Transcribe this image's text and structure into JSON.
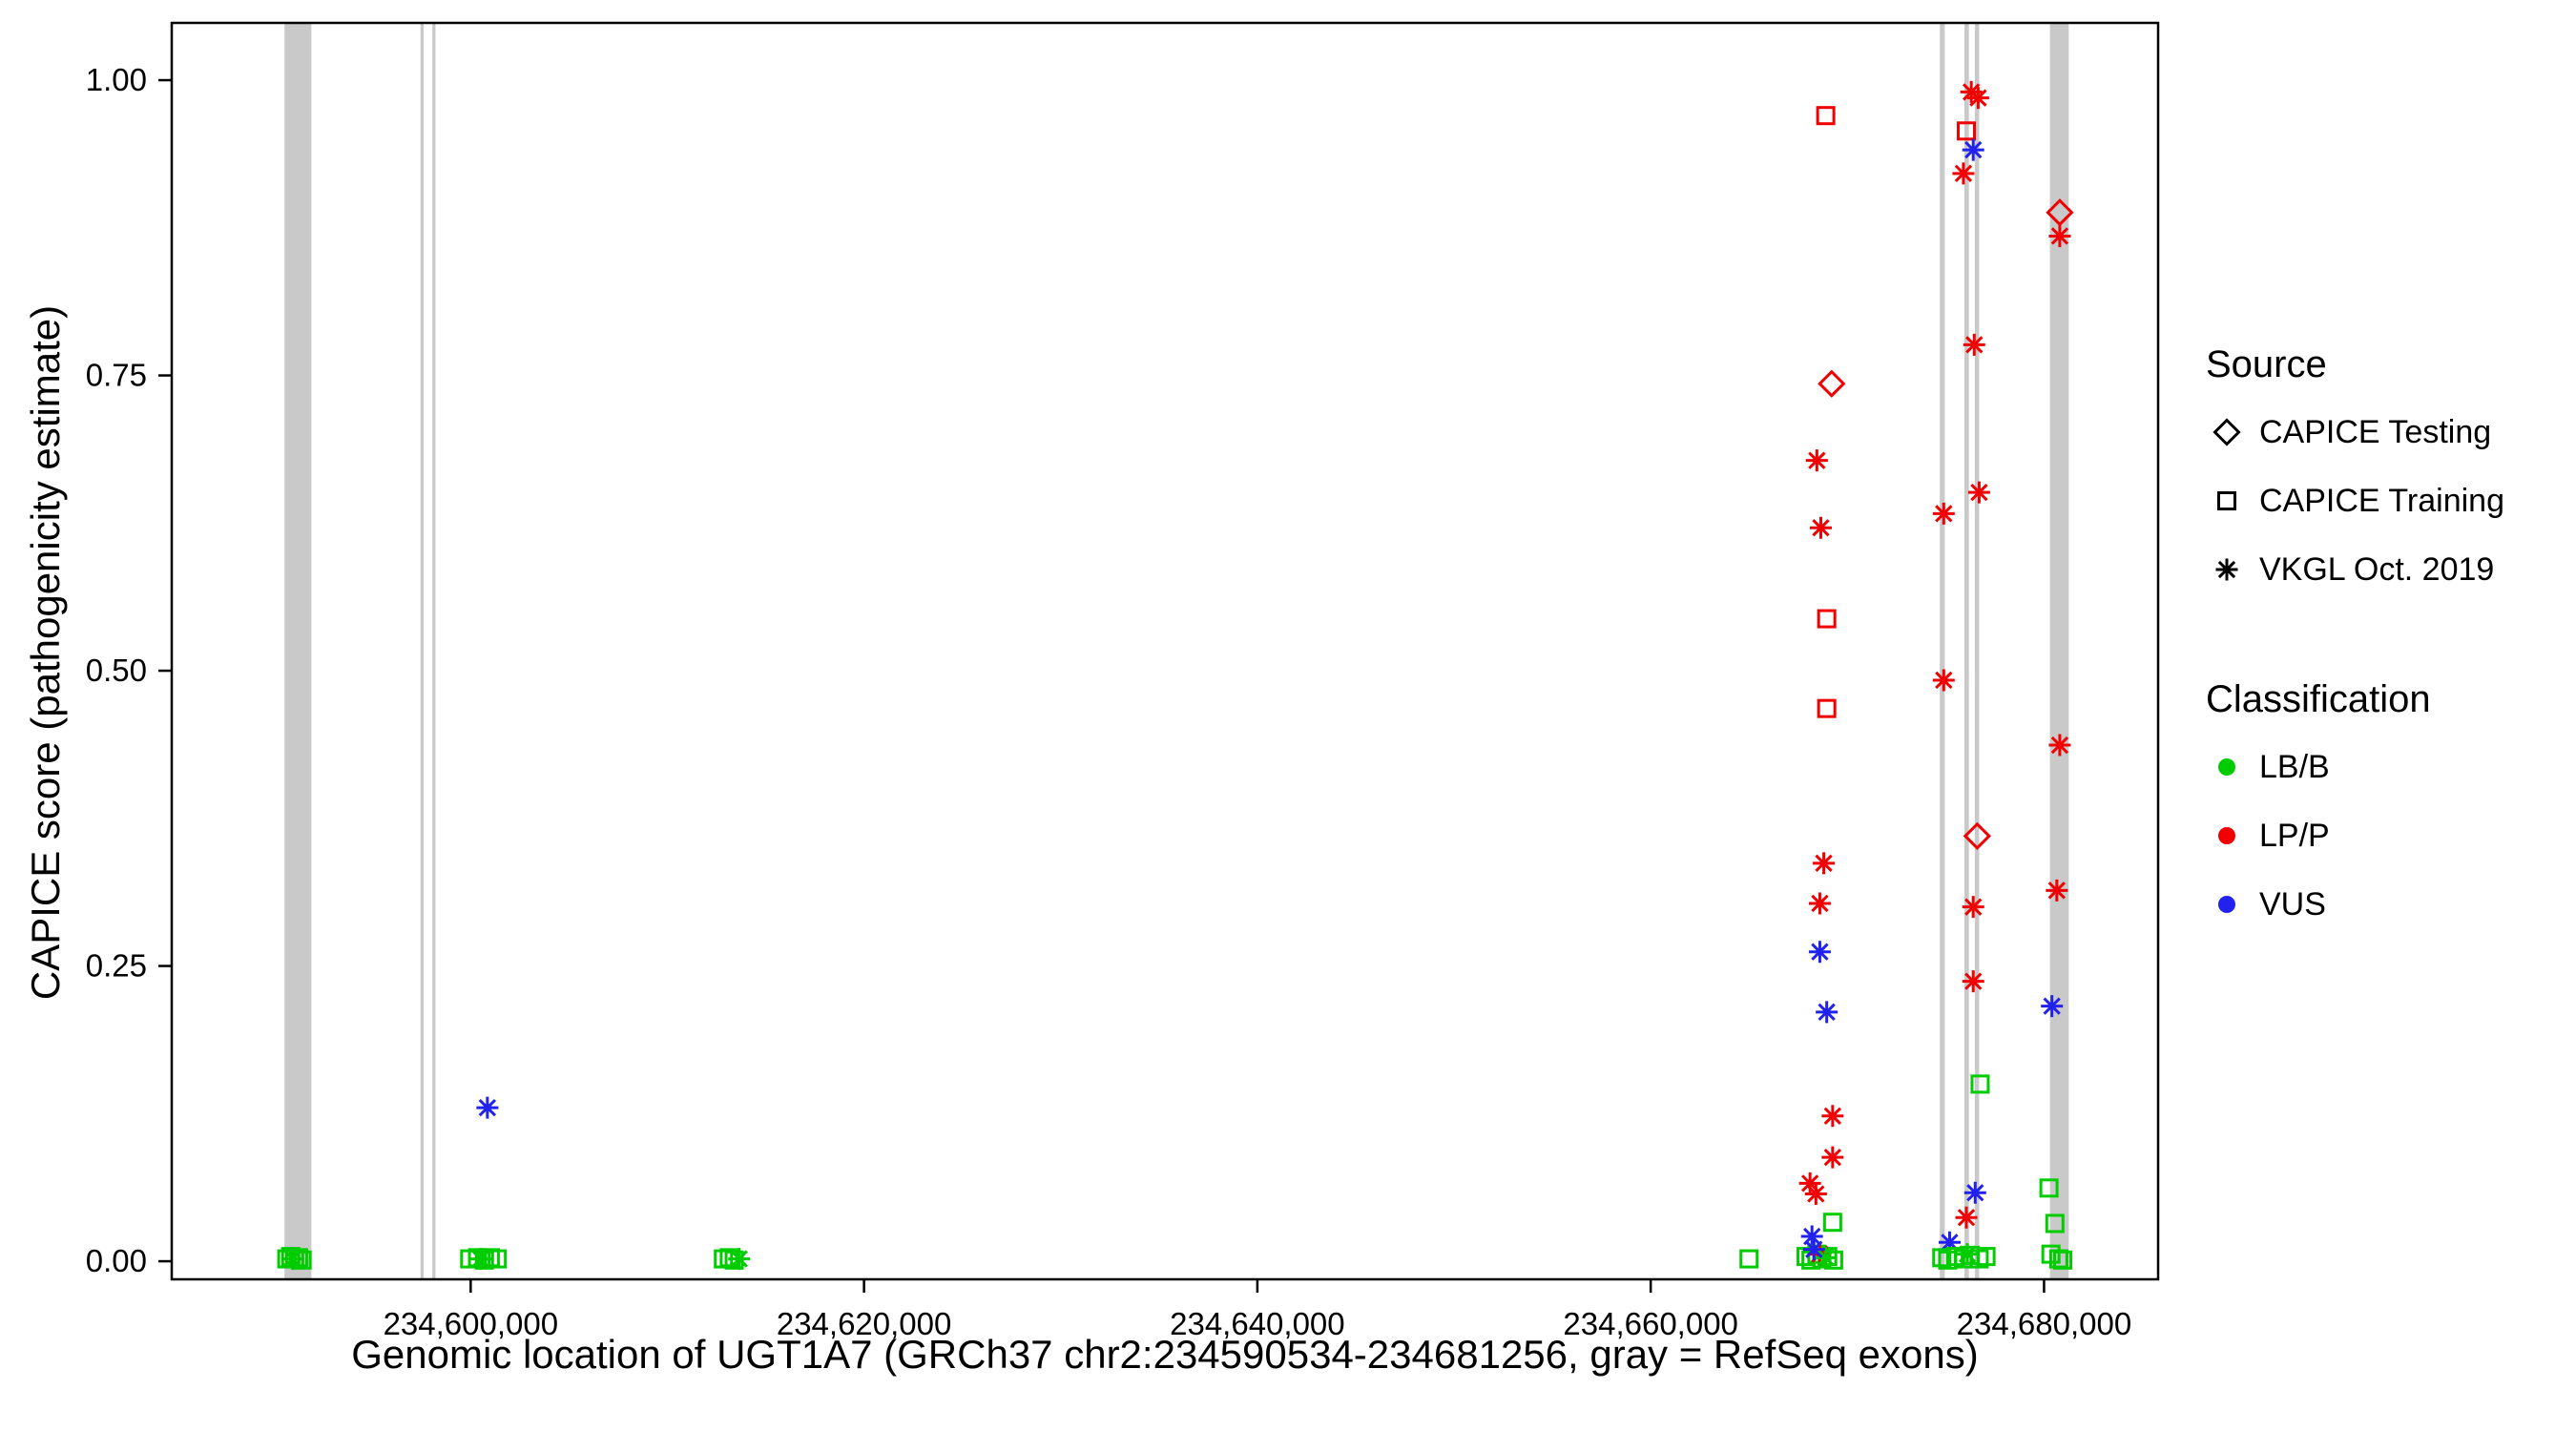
{
  "chart_data": {
    "type": "scatter",
    "title": "",
    "xlabel": "Genomic location of UGT1A7 (GRCh37 chr2:234590534-234681256, gray = RefSeq exons)",
    "ylabel": "CAPICE score (pathogenicity estimate)",
    "xlim": [
      234584800,
      234685800
    ],
    "ylim": [
      -0.0153,
      1.0485
    ],
    "grid": false,
    "legend_position": "right",
    "exon_color": "#c9c9c9",
    "x_ticks": [
      {
        "value": 234600000,
        "label": "234,600,000"
      },
      {
        "value": 234620000,
        "label": "234,620,000"
      },
      {
        "value": 234640000,
        "label": "234,640,000"
      },
      {
        "value": 234660000,
        "label": "234,660,000"
      },
      {
        "value": 234680000,
        "label": "234,680,000"
      }
    ],
    "y_ticks": [
      {
        "value": 0.0,
        "label": "0.00"
      },
      {
        "value": 0.25,
        "label": "0.25"
      },
      {
        "value": 0.5,
        "label": "0.50"
      },
      {
        "value": 0.75,
        "label": "0.75"
      },
      {
        "value": 1.0,
        "label": "1.00"
      }
    ],
    "exons": [
      {
        "start": 234590534,
        "end": 234591900
      },
      {
        "start": 234597450,
        "end": 234597610
      },
      {
        "start": 234598050,
        "end": 234598210
      },
      {
        "start": 234674700,
        "end": 234674950
      },
      {
        "start": 234675950,
        "end": 234676180
      },
      {
        "start": 234676480,
        "end": 234676700
      },
      {
        "start": 234680300,
        "end": 234681256
      }
    ],
    "shapes": {
      "testing": "diamond",
      "training": "square",
      "vkgl": "asterisk"
    },
    "colors": {
      "LB/B": "#00cc00",
      "LP/P": "#f00000",
      "VUS": "#2222ee"
    },
    "points": [
      {
        "x": 234590650,
        "y": 0.002,
        "source": "training",
        "cls": "LB/B"
      },
      {
        "x": 234590850,
        "y": 0.004,
        "source": "training",
        "cls": "LB/B"
      },
      {
        "x": 234591050,
        "y": 0.002,
        "source": "training",
        "cls": "LB/B"
      },
      {
        "x": 234591250,
        "y": 0.003,
        "source": "training",
        "cls": "LB/B"
      },
      {
        "x": 234591430,
        "y": 0.001,
        "source": "training",
        "cls": "LB/B"
      },
      {
        "x": 234590950,
        "y": 0.002,
        "source": "vkgl",
        "cls": "LB/B"
      },
      {
        "x": 234599950,
        "y": 0.002,
        "source": "training",
        "cls": "LB/B"
      },
      {
        "x": 234600350,
        "y": 0.003,
        "source": "training",
        "cls": "LB/B"
      },
      {
        "x": 234600700,
        "y": 0.001,
        "source": "training",
        "cls": "LB/B"
      },
      {
        "x": 234601000,
        "y": 0.003,
        "source": "training",
        "cls": "LB/B"
      },
      {
        "x": 234601350,
        "y": 0.002,
        "source": "training",
        "cls": "LB/B"
      },
      {
        "x": 234600500,
        "y": 0.002,
        "source": "vkgl",
        "cls": "LB/B"
      },
      {
        "x": 234600850,
        "y": 0.13,
        "source": "vkgl",
        "cls": "VUS"
      },
      {
        "x": 234612850,
        "y": 0.002,
        "source": "training",
        "cls": "LB/B"
      },
      {
        "x": 234613150,
        "y": 0.003,
        "source": "training",
        "cls": "LB/B"
      },
      {
        "x": 234613400,
        "y": 0.001,
        "source": "training",
        "cls": "LB/B"
      },
      {
        "x": 234613650,
        "y": 0.002,
        "source": "vkgl",
        "cls": "LB/B"
      },
      {
        "x": 234665000,
        "y": 0.002,
        "source": "training",
        "cls": "LB/B"
      },
      {
        "x": 234668900,
        "y": 0.97,
        "source": "training",
        "cls": "LP/P"
      },
      {
        "x": 234669200,
        "y": 0.743,
        "source": "testing",
        "cls": "LP/P"
      },
      {
        "x": 234668450,
        "y": 0.678,
        "source": "vkgl",
        "cls": "LP/P"
      },
      {
        "x": 234668650,
        "y": 0.621,
        "source": "vkgl",
        "cls": "LP/P"
      },
      {
        "x": 234668950,
        "y": 0.544,
        "source": "training",
        "cls": "LP/P"
      },
      {
        "x": 234668950,
        "y": 0.468,
        "source": "training",
        "cls": "LP/P"
      },
      {
        "x": 234668800,
        "y": 0.337,
        "source": "vkgl",
        "cls": "LP/P"
      },
      {
        "x": 234668600,
        "y": 0.303,
        "source": "vkgl",
        "cls": "LP/P"
      },
      {
        "x": 234668600,
        "y": 0.262,
        "source": "vkgl",
        "cls": "VUS"
      },
      {
        "x": 234668950,
        "y": 0.211,
        "source": "vkgl",
        "cls": "VUS"
      },
      {
        "x": 234669250,
        "y": 0.123,
        "source": "vkgl",
        "cls": "LP/P"
      },
      {
        "x": 234669250,
        "y": 0.088,
        "source": "vkgl",
        "cls": "LP/P"
      },
      {
        "x": 234668100,
        "y": 0.066,
        "source": "vkgl",
        "cls": "LP/P"
      },
      {
        "x": 234668400,
        "y": 0.057,
        "source": "vkgl",
        "cls": "LP/P"
      },
      {
        "x": 234669250,
        "y": 0.033,
        "source": "training",
        "cls": "LB/B"
      },
      {
        "x": 234668200,
        "y": 0.021,
        "source": "vkgl",
        "cls": "VUS"
      },
      {
        "x": 234667900,
        "y": 0.004,
        "source": "training",
        "cls": "LB/B"
      },
      {
        "x": 234668150,
        "y": 0.001,
        "source": "training",
        "cls": "LB/B"
      },
      {
        "x": 234668450,
        "y": 0.006,
        "source": "training",
        "cls": "LB/B"
      },
      {
        "x": 234668700,
        "y": 0.002,
        "source": "training",
        "cls": "LB/B"
      },
      {
        "x": 234669000,
        "y": 0.004,
        "source": "training",
        "cls": "LB/B"
      },
      {
        "x": 234669300,
        "y": 0.001,
        "source": "training",
        "cls": "LB/B"
      },
      {
        "x": 234668600,
        "y": 0.006,
        "source": "vkgl",
        "cls": "LP/P"
      },
      {
        "x": 234668900,
        "y": 0.003,
        "source": "vkgl",
        "cls": "LB/B"
      },
      {
        "x": 234668300,
        "y": 0.01,
        "source": "vkgl",
        "cls": "VUS"
      },
      {
        "x": 234676300,
        "y": 0.99,
        "source": "vkgl",
        "cls": "LP/P"
      },
      {
        "x": 234676650,
        "y": 0.985,
        "source": "vkgl",
        "cls": "LP/P"
      },
      {
        "x": 234676050,
        "y": 0.957,
        "source": "training",
        "cls": "LP/P"
      },
      {
        "x": 234676400,
        "y": 0.941,
        "source": "vkgl",
        "cls": "VUS"
      },
      {
        "x": 234675900,
        "y": 0.921,
        "source": "vkgl",
        "cls": "LP/P"
      },
      {
        "x": 234676450,
        "y": 0.776,
        "source": "vkgl",
        "cls": "LP/P"
      },
      {
        "x": 234676700,
        "y": 0.651,
        "source": "vkgl",
        "cls": "LP/P"
      },
      {
        "x": 234674900,
        "y": 0.633,
        "source": "vkgl",
        "cls": "LP/P"
      },
      {
        "x": 234674900,
        "y": 0.492,
        "source": "vkgl",
        "cls": "LP/P"
      },
      {
        "x": 234676600,
        "y": 0.36,
        "source": "testing",
        "cls": "LP/P"
      },
      {
        "x": 234676400,
        "y": 0.3,
        "source": "vkgl",
        "cls": "LP/P"
      },
      {
        "x": 234676400,
        "y": 0.237,
        "source": "vkgl",
        "cls": "LP/P"
      },
      {
        "x": 234676750,
        "y": 0.15,
        "source": "training",
        "cls": "LB/B"
      },
      {
        "x": 234676500,
        "y": 0.058,
        "source": "vkgl",
        "cls": "VUS"
      },
      {
        "x": 234676050,
        "y": 0.037,
        "source": "vkgl",
        "cls": "LP/P"
      },
      {
        "x": 234675200,
        "y": 0.016,
        "source": "vkgl",
        "cls": "VUS"
      },
      {
        "x": 234674800,
        "y": 0.003,
        "source": "training",
        "cls": "LB/B"
      },
      {
        "x": 234675100,
        "y": 0.001,
        "source": "training",
        "cls": "LB/B"
      },
      {
        "x": 234675500,
        "y": 0.004,
        "source": "training",
        "cls": "LB/B"
      },
      {
        "x": 234675900,
        "y": 0.002,
        "source": "training",
        "cls": "LB/B"
      },
      {
        "x": 234676250,
        "y": 0.005,
        "source": "training",
        "cls": "LB/B"
      },
      {
        "x": 234676700,
        "y": 0.002,
        "source": "training",
        "cls": "LB/B"
      },
      {
        "x": 234677050,
        "y": 0.004,
        "source": "training",
        "cls": "LB/B"
      },
      {
        "x": 234676100,
        "y": 0.006,
        "source": "vkgl",
        "cls": "LB/B"
      },
      {
        "x": 234680800,
        "y": 0.888,
        "source": "testing",
        "cls": "LP/P"
      },
      {
        "x": 234680800,
        "y": 0.868,
        "source": "vkgl",
        "cls": "LP/P"
      },
      {
        "x": 234680800,
        "y": 0.437,
        "source": "vkgl",
        "cls": "LP/P"
      },
      {
        "x": 234680650,
        "y": 0.314,
        "source": "vkgl",
        "cls": "LP/P"
      },
      {
        "x": 234680400,
        "y": 0.216,
        "source": "vkgl",
        "cls": "VUS"
      },
      {
        "x": 234680250,
        "y": 0.062,
        "source": "training",
        "cls": "LB/B"
      },
      {
        "x": 234680550,
        "y": 0.032,
        "source": "training",
        "cls": "LB/B"
      },
      {
        "x": 234680350,
        "y": 0.006,
        "source": "training",
        "cls": "LB/B"
      },
      {
        "x": 234680750,
        "y": 0.002,
        "source": "training",
        "cls": "LB/B"
      },
      {
        "x": 234680950,
        "y": 0.001,
        "source": "training",
        "cls": "LB/B"
      }
    ]
  },
  "legend": {
    "source_title": "Source",
    "source_items": [
      {
        "shape": "diamond",
        "label": "CAPICE Testing"
      },
      {
        "shape": "square",
        "label": "CAPICE Training"
      },
      {
        "shape": "asterisk",
        "label": "VKGL Oct. 2019"
      }
    ],
    "classification_title": "Classification",
    "classification_items": [
      {
        "color": "#00cc00",
        "label": "LB/B"
      },
      {
        "color": "#f00000",
        "label": "LP/P"
      },
      {
        "color": "#2222ee",
        "label": "VUS"
      }
    ]
  }
}
